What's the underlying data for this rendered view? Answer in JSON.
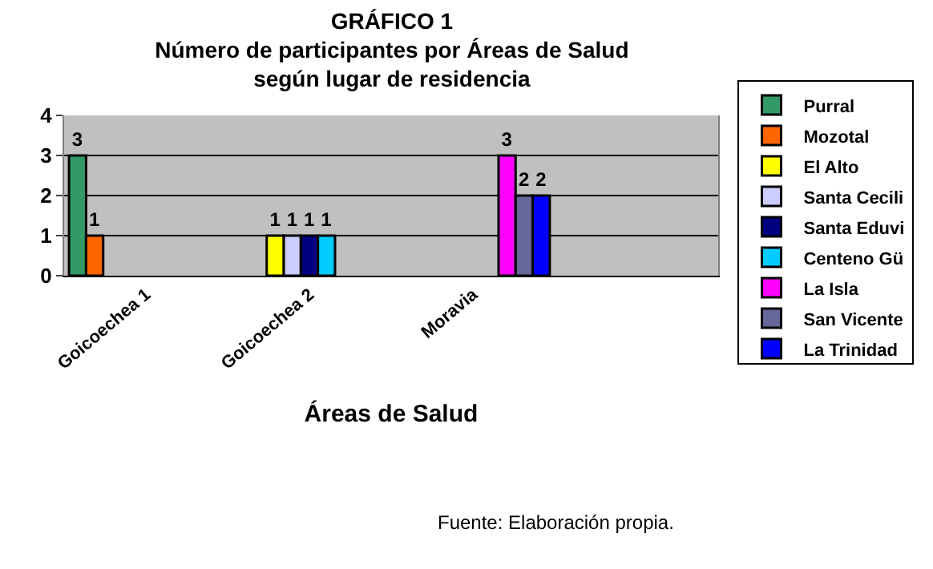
{
  "chart_data": {
    "type": "bar",
    "title": "GRÁFICO 1\nNúmero de participantes por Áreas de Salud\nsegún lugar de residencia",
    "xlabel": "Áreas de Salud",
    "categories": [
      "Goicoechea 1",
      "Goicoechea 2",
      "Moravia",
      null
    ],
    "series": [
      {
        "name": "Purral",
        "color": "#339966",
        "values": [
          3,
          null,
          null,
          null
        ]
      },
      {
        "name": "Mozotal",
        "color": "#ff6600",
        "values": [
          1,
          null,
          null,
          null
        ]
      },
      {
        "name": "El Alto",
        "color": "#ffff00",
        "values": [
          null,
          1,
          null,
          null
        ]
      },
      {
        "name": "Santa Cecili",
        "color": "#ccccff",
        "values": [
          null,
          1,
          null,
          null
        ]
      },
      {
        "name": "Santa Eduvi",
        "color": "#000080",
        "values": [
          null,
          1,
          null,
          null
        ]
      },
      {
        "name": "Centeno Gü",
        "color": "#00ccff",
        "values": [
          null,
          1,
          null,
          null
        ]
      },
      {
        "name": "La Isla",
        "color": "#ff00ff",
        "values": [
          null,
          null,
          3,
          null
        ]
      },
      {
        "name": "San Vicente",
        "color": "#666699",
        "values": [
          null,
          null,
          2,
          null
        ]
      },
      {
        "name": "La Trinidad",
        "color": "#0000ff",
        "values": [
          null,
          null,
          2,
          null
        ]
      }
    ],
    "ylim": [
      0,
      4
    ],
    "yticks": [
      0,
      1,
      2,
      3,
      4
    ],
    "grid": "y",
    "legend": "right",
    "data_labels": true,
    "annotations": [
      "Fuente: Elaboración propia."
    ]
  }
}
